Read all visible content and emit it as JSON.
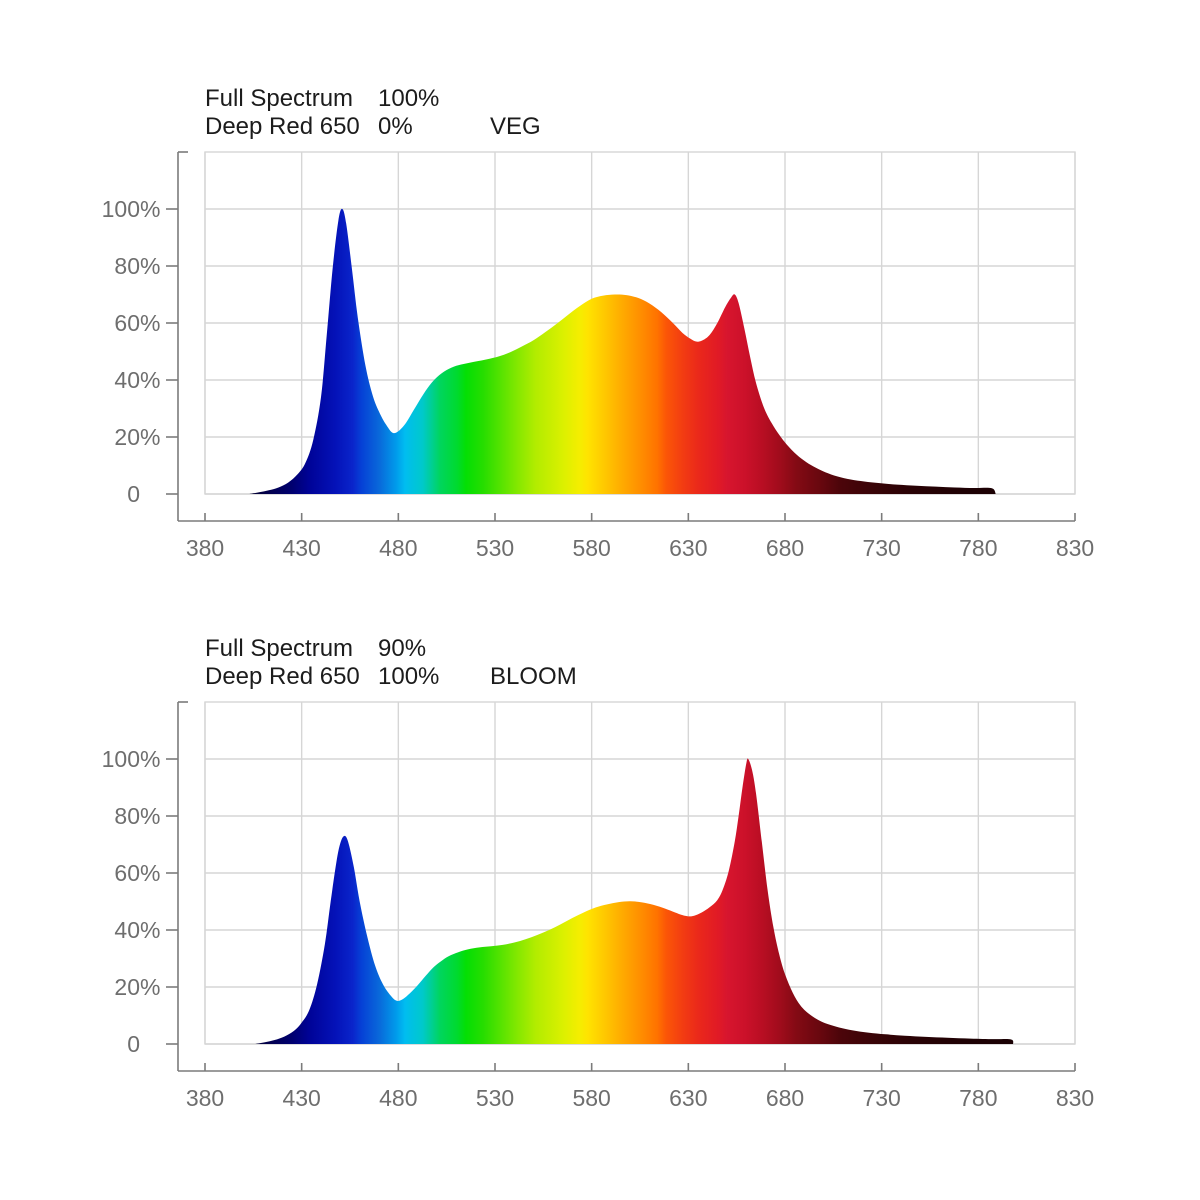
{
  "style": {
    "background": "#ffffff",
    "grid_color": "#d6d6d6",
    "axis_color": "#7b7b7b",
    "tick_label_color": "#6e6e6e",
    "header_color": "#1c1c1c",
    "spectral_gradient": [
      {
        "nm": 400,
        "color": "#05001e"
      },
      {
        "nm": 413,
        "color": "#020049"
      },
      {
        "nm": 425,
        "color": "#00006f"
      },
      {
        "nm": 436,
        "color": "#000397"
      },
      {
        "nm": 446,
        "color": "#0412b8"
      },
      {
        "nm": 455,
        "color": "#0a25cb"
      },
      {
        "nm": 463,
        "color": "#0641d6"
      },
      {
        "nm": 471,
        "color": "#0968da"
      },
      {
        "nm": 478,
        "color": "#009ceb"
      },
      {
        "nm": 485,
        "color": "#00bdf0"
      },
      {
        "nm": 491,
        "color": "#00c9cb"
      },
      {
        "nm": 497,
        "color": "#00cf96"
      },
      {
        "nm": 503,
        "color": "#00d55e"
      },
      {
        "nm": 509,
        "color": "#00da2e"
      },
      {
        "nm": 516,
        "color": "#04df04"
      },
      {
        "nm": 524,
        "color": "#27dd00"
      },
      {
        "nm": 533,
        "color": "#56e300"
      },
      {
        "nm": 543,
        "color": "#86e800"
      },
      {
        "nm": 553,
        "color": "#b2ec00"
      },
      {
        "nm": 563,
        "color": "#d9f000"
      },
      {
        "nm": 572,
        "color": "#f4ee00"
      },
      {
        "nm": 580,
        "color": "#ffe300"
      },
      {
        "nm": 588,
        "color": "#ffc700"
      },
      {
        "nm": 596,
        "color": "#ffaa00"
      },
      {
        "nm": 604,
        "color": "#ff8f00"
      },
      {
        "nm": 612,
        "color": "#ff7200"
      },
      {
        "nm": 620,
        "color": "#fb5607"
      },
      {
        "nm": 628,
        "color": "#f23b12"
      },
      {
        "nm": 636,
        "color": "#e9261c"
      },
      {
        "nm": 644,
        "color": "#e01a26"
      },
      {
        "nm": 652,
        "color": "#d7152e"
      },
      {
        "nm": 660,
        "color": "#cc112a"
      },
      {
        "nm": 668,
        "color": "#b90e23"
      },
      {
        "nm": 677,
        "color": "#a10c1c"
      },
      {
        "nm": 687,
        "color": "#830a14"
      },
      {
        "nm": 698,
        "color": "#65070e"
      },
      {
        "nm": 710,
        "color": "#4c050a"
      },
      {
        "nm": 725,
        "color": "#380407"
      },
      {
        "nm": 745,
        "color": "#2a0205"
      },
      {
        "nm": 770,
        "color": "#1f0104"
      },
      {
        "nm": 830,
        "color": "#150103"
      }
    ]
  },
  "charts": [
    {
      "header": {
        "row1_label": "Full Spectrum",
        "row1_value": "100%",
        "row2_label": "Deep Red 650",
        "row2_value": "0%",
        "mode": "VEG"
      }
    },
    {
      "header": {
        "row1_label": "Full Spectrum",
        "row1_value": "90%",
        "row2_label": "Deep Red 650",
        "row2_value": "100%",
        "mode": "BLOOM"
      }
    }
  ],
  "chart_data": [
    {
      "type": "area",
      "title": "VEG",
      "legend": [
        {
          "label": "Full Spectrum",
          "value": "100%"
        },
        {
          "label": "Deep Red 650",
          "value": "0%"
        }
      ],
      "xlim": [
        380,
        830
      ],
      "ylim": [
        0,
        120
      ],
      "grid": true,
      "x_ticks": [
        "380",
        "430",
        "480",
        "530",
        "580",
        "630",
        "680",
        "730",
        "780",
        "830"
      ],
      "y_ticks": [
        {
          "num": "100",
          "suffix": "%",
          "value": 100
        },
        {
          "num": "80",
          "suffix": "%",
          "value": 80
        },
        {
          "num": "60",
          "suffix": "%",
          "value": 60
        },
        {
          "num": "40",
          "suffix": "%",
          "value": 40
        },
        {
          "num": "20",
          "suffix": "%",
          "value": 20
        },
        {
          "num": "0",
          "suffix": "",
          "value": 0
        }
      ],
      "points": [
        [
          403,
          0
        ],
        [
          408,
          0.6
        ],
        [
          413,
          1.3
        ],
        [
          418,
          2.3
        ],
        [
          423,
          4
        ],
        [
          428,
          7
        ],
        [
          432,
          11
        ],
        [
          436,
          19
        ],
        [
          440,
          34
        ],
        [
          443,
          56
        ],
        [
          446,
          79
        ],
        [
          449,
          96
        ],
        [
          451,
          100
        ],
        [
          453,
          95
        ],
        [
          456,
          79
        ],
        [
          459,
          62
        ],
        [
          463,
          45
        ],
        [
          467,
          34
        ],
        [
          471,
          27.5
        ],
        [
          474,
          24
        ],
        [
          477,
          21.5
        ],
        [
          480,
          22
        ],
        [
          484,
          25
        ],
        [
          488,
          29.5
        ],
        [
          492,
          34
        ],
        [
          496,
          38
        ],
        [
          500,
          41
        ],
        [
          505,
          43.5
        ],
        [
          510,
          45
        ],
        [
          515,
          45.8
        ],
        [
          520,
          46.5
        ],
        [
          526,
          47.3
        ],
        [
          532,
          48.3
        ],
        [
          538,
          49.8
        ],
        [
          544,
          51.8
        ],
        [
          550,
          54
        ],
        [
          556,
          56.8
        ],
        [
          562,
          59.8
        ],
        [
          568,
          63
        ],
        [
          574,
          66
        ],
        [
          580,
          68.5
        ],
        [
          586,
          69.6
        ],
        [
          592,
          70
        ],
        [
          598,
          69.8
        ],
        [
          604,
          68.8
        ],
        [
          610,
          66.8
        ],
        [
          616,
          63.8
        ],
        [
          622,
          60
        ],
        [
          627,
          56.5
        ],
        [
          631,
          54.5
        ],
        [
          634,
          53.5
        ],
        [
          637,
          53.8
        ],
        [
          641,
          55.8
        ],
        [
          645,
          60
        ],
        [
          649,
          65.5
        ],
        [
          652,
          68.8
        ],
        [
          654,
          70
        ],
        [
          656,
          67
        ],
        [
          659,
          58
        ],
        [
          662,
          48
        ],
        [
          665,
          39
        ],
        [
          669,
          30.5
        ],
        [
          673,
          25
        ],
        [
          677,
          20.8
        ],
        [
          681,
          17.3
        ],
        [
          686,
          13.8
        ],
        [
          691,
          11.2
        ],
        [
          696,
          9.2
        ],
        [
          701,
          7.6
        ],
        [
          707,
          6.2
        ],
        [
          714,
          5.1
        ],
        [
          721,
          4.4
        ],
        [
          729,
          3.8
        ],
        [
          738,
          3.3
        ],
        [
          748,
          2.9
        ],
        [
          758,
          2.6
        ],
        [
          768,
          2.3
        ],
        [
          778,
          2.1
        ],
        [
          787,
          2
        ],
        [
          789,
          0
        ]
      ]
    },
    {
      "type": "area",
      "title": "BLOOM",
      "legend": [
        {
          "label": "Full Spectrum",
          "value": "90%"
        },
        {
          "label": "Deep Red 650",
          "value": "100%"
        }
      ],
      "xlim": [
        380,
        830
      ],
      "ylim": [
        0,
        120
      ],
      "grid": true,
      "x_ticks": [
        "380",
        "430",
        "480",
        "530",
        "580",
        "630",
        "680",
        "730",
        "780",
        "830"
      ],
      "y_ticks": [
        {
          "num": "100",
          "suffix": "%",
          "value": 100
        },
        {
          "num": "80",
          "suffix": "%",
          "value": 80
        },
        {
          "num": "60",
          "suffix": "%",
          "value": 60
        },
        {
          "num": "40",
          "suffix": "%",
          "value": 40
        },
        {
          "num": "20",
          "suffix": "%",
          "value": 20
        },
        {
          "num": "0",
          "suffix": "",
          "value": 0
        }
      ],
      "points": [
        [
          406,
          0
        ],
        [
          411,
          0.6
        ],
        [
          416,
          1.4
        ],
        [
          421,
          2.6
        ],
        [
          426,
          4.6
        ],
        [
          430,
          7.5
        ],
        [
          434,
          12
        ],
        [
          438,
          21
        ],
        [
          442,
          35
        ],
        [
          445,
          50
        ],
        [
          448,
          64
        ],
        [
          450,
          70.5
        ],
        [
          452,
          73
        ],
        [
          454,
          71
        ],
        [
          457,
          62
        ],
        [
          460,
          50
        ],
        [
          464,
          37.5
        ],
        [
          468,
          27.5
        ],
        [
          472,
          21
        ],
        [
          476,
          17
        ],
        [
          479,
          15.2
        ],
        [
          482,
          15.6
        ],
        [
          486,
          17.8
        ],
        [
          490,
          20.6
        ],
        [
          494,
          23.8
        ],
        [
          498,
          26.8
        ],
        [
          502,
          29
        ],
        [
          506,
          30.8
        ],
        [
          511,
          32.2
        ],
        [
          516,
          33.2
        ],
        [
          522,
          33.9
        ],
        [
          528,
          34.3
        ],
        [
          534,
          34.8
        ],
        [
          540,
          35.6
        ],
        [
          546,
          36.8
        ],
        [
          552,
          38.3
        ],
        [
          558,
          40
        ],
        [
          564,
          42
        ],
        [
          570,
          44.2
        ],
        [
          576,
          46.2
        ],
        [
          582,
          47.9
        ],
        [
          588,
          49
        ],
        [
          594,
          49.8
        ],
        [
          600,
          50.1
        ],
        [
          606,
          49.7
        ],
        [
          612,
          48.8
        ],
        [
          618,
          47.5
        ],
        [
          623,
          46.2
        ],
        [
          627,
          45.2
        ],
        [
          630,
          44.8
        ],
        [
          633,
          45
        ],
        [
          637,
          46.2
        ],
        [
          641,
          48
        ],
        [
          645,
          50.5
        ],
        [
          648,
          54.5
        ],
        [
          651,
          61
        ],
        [
          654,
          71
        ],
        [
          656,
          80
        ],
        [
          658,
          90
        ],
        [
          660,
          98.5
        ],
        [
          661,
          100
        ],
        [
          663,
          96
        ],
        [
          665,
          88
        ],
        [
          668,
          71
        ],
        [
          671,
          54
        ],
        [
          674,
          41
        ],
        [
          677,
          31.5
        ],
        [
          680,
          24.5
        ],
        [
          684,
          18
        ],
        [
          688,
          13.5
        ],
        [
          692,
          10.8
        ],
        [
          697,
          8.5
        ],
        [
          702,
          7
        ],
        [
          708,
          5.8
        ],
        [
          715,
          4.8
        ],
        [
          723,
          4
        ],
        [
          732,
          3.4
        ],
        [
          742,
          2.9
        ],
        [
          753,
          2.5
        ],
        [
          764,
          2.2
        ],
        [
          776,
          1.9
        ],
        [
          788,
          1.7
        ],
        [
          797,
          1.6
        ],
        [
          798,
          0
        ]
      ]
    }
  ]
}
